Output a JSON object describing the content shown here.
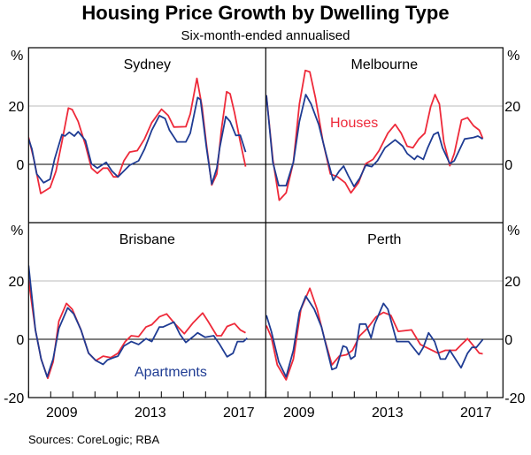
{
  "chart_data": {
    "type": "line",
    "title": "Housing Price Growth by Dwelling Type",
    "subtitle": "Six-month-ended annualised",
    "source": "Sources: CoreLogic; RBA",
    "unit_label": "%",
    "xlim": [
      2008,
      2018.72
    ],
    "ylim": [
      -20,
      40
    ],
    "yticks": [
      20,
      0,
      -20
    ],
    "ytick_labels": [
      "20",
      "0",
      "-20"
    ],
    "xtick_years": [
      2009,
      2013,
      2017
    ],
    "xtick_labels": [
      "2009",
      "2013",
      "2017"
    ],
    "colors": {
      "houses": "#EE2A3A",
      "apartments": "#1F3C93"
    },
    "series_names": {
      "houses": "Houses",
      "apartments": "Apartments"
    },
    "panels": [
      {
        "title": "Sydney",
        "houses": [
          [
            2008.0,
            9.2
          ],
          [
            2008.24,
            1.7
          ],
          [
            2008.55,
            -10
          ],
          [
            2008.97,
            -8
          ],
          [
            2009.24,
            -2.3
          ],
          [
            2009.51,
            7.7
          ],
          [
            2009.8,
            19.3
          ],
          [
            2009.97,
            18.8
          ],
          [
            2010.24,
            14.7
          ],
          [
            2010.57,
            6.7
          ],
          [
            2010.84,
            -1.3
          ],
          [
            2011.11,
            -3.1
          ],
          [
            2011.37,
            -1.3
          ],
          [
            2011.57,
            -1.3
          ],
          [
            2011.84,
            -4.3
          ],
          [
            2012.04,
            -4.3
          ],
          [
            2012.31,
            1.2
          ],
          [
            2012.57,
            4.2
          ],
          [
            2012.91,
            4.7
          ],
          [
            2013.24,
            8.7
          ],
          [
            2013.57,
            14.3
          ],
          [
            2014.01,
            18.9
          ],
          [
            2014.31,
            16.8
          ],
          [
            2014.57,
            12.8
          ],
          [
            2015.11,
            12.9
          ],
          [
            2015.31,
            17.3
          ],
          [
            2015.61,
            29.5
          ],
          [
            2015.84,
            19.8
          ],
          [
            2016.04,
            6.7
          ],
          [
            2016.28,
            -7.1
          ],
          [
            2016.51,
            -3.3
          ],
          [
            2016.71,
            11.7
          ],
          [
            2016.95,
            24.9
          ],
          [
            2017.11,
            24.2
          ],
          [
            2017.31,
            17.7
          ],
          [
            2017.57,
            7.7
          ],
          [
            2017.81,
            -0.8
          ]
        ],
        "apartments": [
          [
            2008.0,
            8.7
          ],
          [
            2008.15,
            5.2
          ],
          [
            2008.37,
            -3.3
          ],
          [
            2008.68,
            -6.3
          ],
          [
            2008.97,
            -5.1
          ],
          [
            2009.17,
            1.7
          ],
          [
            2009.51,
            10.2
          ],
          [
            2009.64,
            9.7
          ],
          [
            2009.84,
            11
          ],
          [
            2010.07,
            9.7
          ],
          [
            2010.24,
            11.2
          ],
          [
            2010.57,
            8.2
          ],
          [
            2010.84,
            0.2
          ],
          [
            2011.11,
            -1.3
          ],
          [
            2011.51,
            0.7
          ],
          [
            2011.77,
            -2.3
          ],
          [
            2012.04,
            -4.3
          ],
          [
            2012.57,
            -0.3
          ],
          [
            2012.97,
            1.2
          ],
          [
            2013.24,
            5.2
          ],
          [
            2013.57,
            11.7
          ],
          [
            2013.91,
            16.7
          ],
          [
            2014.17,
            15.7
          ],
          [
            2014.37,
            11.7
          ],
          [
            2014.71,
            7.7
          ],
          [
            2015.11,
            7.7
          ],
          [
            2015.31,
            10.7
          ],
          [
            2015.64,
            22.9
          ],
          [
            2015.77,
            22.2
          ],
          [
            2016.04,
            5.7
          ],
          [
            2016.28,
            -6.8
          ],
          [
            2016.51,
            -1.3
          ],
          [
            2016.64,
            5.7
          ],
          [
            2016.91,
            16.4
          ],
          [
            2017.11,
            14.7
          ],
          [
            2017.37,
            9.9
          ],
          [
            2017.57,
            10
          ],
          [
            2017.81,
            4.2
          ]
        ]
      },
      {
        "title": "Melbourne",
        "houses": [
          [
            2008.03,
            23.7
          ],
          [
            2008.32,
            1.7
          ],
          [
            2008.61,
            -12.3
          ],
          [
            2008.92,
            -9.8
          ],
          [
            2009.25,
            0.7
          ],
          [
            2009.52,
            20.7
          ],
          [
            2009.79,
            32.2
          ],
          [
            2009.99,
            31.7
          ],
          [
            2010.25,
            22.7
          ],
          [
            2010.59,
            7.7
          ],
          [
            2010.92,
            -3.3
          ],
          [
            2011.25,
            -4.3
          ],
          [
            2011.59,
            -6.3
          ],
          [
            2011.85,
            -9.8
          ],
          [
            2012.19,
            -6.3
          ],
          [
            2012.52,
            0.2
          ],
          [
            2012.85,
            1.7
          ],
          [
            2013.12,
            4.7
          ],
          [
            2013.52,
            10.7
          ],
          [
            2013.85,
            13.7
          ],
          [
            2014.12,
            10.7
          ],
          [
            2014.39,
            6.2
          ],
          [
            2014.65,
            5.7
          ],
          [
            2014.92,
            8.7
          ],
          [
            2015.19,
            10.7
          ],
          [
            2015.45,
            19.7
          ],
          [
            2015.65,
            23.9
          ],
          [
            2015.85,
            20.7
          ],
          [
            2016.05,
            7.7
          ],
          [
            2016.32,
            -0.5
          ],
          [
            2016.52,
            3.7
          ],
          [
            2016.85,
            15.2
          ],
          [
            2017.12,
            16
          ],
          [
            2017.39,
            13.2
          ],
          [
            2017.65,
            11.7
          ],
          [
            2017.81,
            8.9
          ]
        ],
        "apartments": [
          [
            2008.03,
            23.7
          ],
          [
            2008.32,
            0.7
          ],
          [
            2008.59,
            -7.3
          ],
          [
            2008.92,
            -7.3
          ],
          [
            2009.25,
            0.7
          ],
          [
            2009.52,
            14.7
          ],
          [
            2009.81,
            23.9
          ],
          [
            2010.05,
            20.7
          ],
          [
            2010.39,
            13.7
          ],
          [
            2010.72,
            3.7
          ],
          [
            2011.05,
            -5.5
          ],
          [
            2011.32,
            -2.3
          ],
          [
            2011.52,
            -0.6
          ],
          [
            2011.72,
            -3.8
          ],
          [
            2011.99,
            -7.6
          ],
          [
            2012.25,
            -4.8
          ],
          [
            2012.52,
            -0.3
          ],
          [
            2012.79,
            -0.8
          ],
          [
            2013.05,
            1.2
          ],
          [
            2013.39,
            5.7
          ],
          [
            2013.85,
            8.4
          ],
          [
            2014.19,
            6.2
          ],
          [
            2014.39,
            3.7
          ],
          [
            2014.72,
            1.7
          ],
          [
            2014.85,
            2.9
          ],
          [
            2015.12,
            1.7
          ],
          [
            2015.32,
            5.7
          ],
          [
            2015.59,
            10.2
          ],
          [
            2015.79,
            11
          ],
          [
            2015.99,
            5.7
          ],
          [
            2016.32,
            0.2
          ],
          [
            2016.52,
            1.2
          ],
          [
            2016.99,
            8.7
          ],
          [
            2017.39,
            9.2
          ],
          [
            2017.59,
            9.7
          ],
          [
            2017.81,
            8.7
          ]
        ]
      },
      {
        "title": "Brisbane",
        "houses": [
          [
            2008.0,
            20.3
          ],
          [
            2008.31,
            3.2
          ],
          [
            2008.57,
            -6.8
          ],
          [
            2008.87,
            -13.4
          ],
          [
            2009.11,
            -7.8
          ],
          [
            2009.37,
            6.2
          ],
          [
            2009.71,
            12.3
          ],
          [
            2009.97,
            10.3
          ],
          [
            2010.37,
            3.2
          ],
          [
            2010.71,
            -4.8
          ],
          [
            2011.04,
            -7.3
          ],
          [
            2011.37,
            -5.8
          ],
          [
            2011.71,
            -6.3
          ],
          [
            2012.04,
            -4.8
          ],
          [
            2012.37,
            -0.8
          ],
          [
            2012.64,
            1.2
          ],
          [
            2012.97,
            0.9
          ],
          [
            2013.31,
            4.2
          ],
          [
            2013.57,
            5
          ],
          [
            2013.91,
            7.7
          ],
          [
            2014.24,
            8.7
          ],
          [
            2014.57,
            5.7
          ],
          [
            2015.04,
            1.9
          ],
          [
            2015.44,
            5.7
          ],
          [
            2015.87,
            9
          ],
          [
            2016.11,
            6.2
          ],
          [
            2016.51,
            1.2
          ],
          [
            2016.71,
            1.2
          ],
          [
            2016.97,
            4.4
          ],
          [
            2017.31,
            5.4
          ],
          [
            2017.57,
            3.2
          ],
          [
            2017.81,
            2.2
          ]
        ],
        "apartments": [
          [
            2008.0,
            25.3
          ],
          [
            2008.31,
            3.2
          ],
          [
            2008.57,
            -6.8
          ],
          [
            2008.84,
            -12.9
          ],
          [
            2009.11,
            -6.8
          ],
          [
            2009.37,
            3.7
          ],
          [
            2009.77,
            10.8
          ],
          [
            2010.04,
            8.7
          ],
          [
            2010.37,
            3.2
          ],
          [
            2010.71,
            -4.8
          ],
          [
            2011.04,
            -7.3
          ],
          [
            2011.37,
            -8.6
          ],
          [
            2011.57,
            -7.1
          ],
          [
            2011.91,
            -6.1
          ],
          [
            2012.04,
            -5.8
          ],
          [
            2012.31,
            -2.3
          ],
          [
            2012.64,
            -0.8
          ],
          [
            2012.97,
            -1.8
          ],
          [
            2013.31,
            0.2
          ],
          [
            2013.57,
            -0.8
          ],
          [
            2013.91,
            4.2
          ],
          [
            2014.08,
            4.2
          ],
          [
            2014.37,
            5.2
          ],
          [
            2014.57,
            5.9
          ],
          [
            2014.84,
            1.7
          ],
          [
            2015.11,
            -1.1
          ],
          [
            2015.44,
            0.9
          ],
          [
            2015.64,
            2.2
          ],
          [
            2015.97,
            0.7
          ],
          [
            2016.37,
            1.2
          ],
          [
            2016.64,
            -1.8
          ],
          [
            2016.97,
            -6
          ],
          [
            2017.24,
            -4.8
          ],
          [
            2017.44,
            -0.8
          ],
          [
            2017.71,
            -0.8
          ],
          [
            2017.88,
            0.4
          ]
        ]
      },
      {
        "title": "Perth",
        "houses": [
          [
            2008.03,
            4.7
          ],
          [
            2008.25,
            0.7
          ],
          [
            2008.52,
            -8.8
          ],
          [
            2008.92,
            -13.9
          ],
          [
            2009.25,
            -6.8
          ],
          [
            2009.59,
            10.3
          ],
          [
            2009.99,
            17.5
          ],
          [
            2010.32,
            10.3
          ],
          [
            2010.65,
            0.2
          ],
          [
            2010.99,
            -8.8
          ],
          [
            2011.32,
            -5.8
          ],
          [
            2011.65,
            -5.3
          ],
          [
            2011.92,
            -3.8
          ],
          [
            2012.25,
            1.2
          ],
          [
            2012.59,
            3.7
          ],
          [
            2012.99,
            7.7
          ],
          [
            2013.32,
            9.2
          ],
          [
            2013.65,
            8.2
          ],
          [
            2013.99,
            2.7
          ],
          [
            2014.59,
            3.2
          ],
          [
            2014.99,
            -1.8
          ],
          [
            2015.39,
            -3.3
          ],
          [
            2015.79,
            -4.8
          ],
          [
            2016.12,
            -3.8
          ],
          [
            2016.59,
            -3.8
          ],
          [
            2016.85,
            -1.8
          ],
          [
            2017.12,
            0.2
          ],
          [
            2017.39,
            -2.3
          ],
          [
            2017.65,
            -4.8
          ],
          [
            2017.81,
            -5
          ]
        ],
        "apartments": [
          [
            2008.03,
            8.2
          ],
          [
            2008.25,
            2.7
          ],
          [
            2008.59,
            -7.8
          ],
          [
            2008.92,
            -12.9
          ],
          [
            2009.25,
            -3.8
          ],
          [
            2009.52,
            9.2
          ],
          [
            2009.81,
            14.8
          ],
          [
            2010.19,
            10.3
          ],
          [
            2010.52,
            4.2
          ],
          [
            2010.99,
            -10.4
          ],
          [
            2011.19,
            -9.8
          ],
          [
            2011.49,
            -2.3
          ],
          [
            2011.65,
            -2.8
          ],
          [
            2011.85,
            -6.8
          ],
          [
            2012.03,
            -5.8
          ],
          [
            2012.25,
            5.2
          ],
          [
            2012.52,
            5.2
          ],
          [
            2012.76,
            0.5
          ],
          [
            2012.92,
            5.2
          ],
          [
            2013.32,
            12.3
          ],
          [
            2013.52,
            10.3
          ],
          [
            2013.92,
            -0.8
          ],
          [
            2014.45,
            -0.8
          ],
          [
            2014.92,
            -5.3
          ],
          [
            2015.12,
            -2.8
          ],
          [
            2015.36,
            2.2
          ],
          [
            2015.63,
            -0.8
          ],
          [
            2015.89,
            -6.8
          ],
          [
            2016.12,
            -6.8
          ],
          [
            2016.32,
            -3.8
          ],
          [
            2016.83,
            -9.8
          ],
          [
            2017.12,
            -4.8
          ],
          [
            2017.32,
            -2.8
          ],
          [
            2017.52,
            -2.8
          ],
          [
            2017.81,
            -0.1
          ]
        ]
      }
    ]
  }
}
